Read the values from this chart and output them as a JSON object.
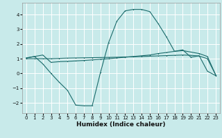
{
  "title": "",
  "xlabel": "Humidex (Indice chaleur)",
  "bg_color": "#c8eaea",
  "grid_color": "#ffffff",
  "line_color": "#1a6b6b",
  "xlim": [
    -0.5,
    23.5
  ],
  "ylim": [
    -2.7,
    4.8
  ],
  "yticks": [
    -2,
    -1,
    0,
    1,
    2,
    3,
    4
  ],
  "xticks": [
    0,
    1,
    2,
    3,
    4,
    5,
    6,
    7,
    8,
    9,
    10,
    11,
    12,
    13,
    14,
    15,
    16,
    17,
    18,
    19,
    20,
    21,
    22,
    23
  ],
  "series1_x": [
    0,
    1,
    2,
    3,
    4,
    5,
    6,
    7,
    8,
    9,
    10,
    11,
    12,
    13,
    14,
    15,
    16,
    17,
    18,
    19,
    20,
    21,
    22,
    23
  ],
  "series1_y": [
    1.05,
    1.15,
    1.25,
    0.75,
    0.8,
    0.82,
    0.85,
    0.88,
    0.92,
    0.96,
    1.0,
    1.05,
    1.1,
    1.15,
    1.2,
    1.25,
    1.35,
    1.42,
    1.5,
    1.55,
    1.45,
    1.35,
    1.15,
    -0.1
  ],
  "series2_x": [
    0,
    1,
    2,
    3,
    4,
    5,
    6,
    7,
    8,
    9,
    10,
    11,
    12,
    13,
    14,
    15,
    16,
    17,
    18,
    19,
    20,
    21,
    22,
    23
  ],
  "series2_y": [
    1.0,
    1.0,
    1.0,
    1.0,
    1.02,
    1.04,
    1.05,
    1.06,
    1.07,
    1.08,
    1.09,
    1.1,
    1.12,
    1.13,
    1.15,
    1.17,
    1.19,
    1.21,
    1.23,
    1.25,
    1.23,
    1.18,
    1.0,
    -0.1
  ],
  "series3_x": [
    0,
    1,
    2,
    3,
    4,
    5,
    6,
    7,
    8,
    9,
    10,
    11,
    12,
    13,
    14,
    15,
    16,
    17,
    18,
    19,
    20,
    21,
    22,
    23
  ],
  "series3_y": [
    1.05,
    1.15,
    0.65,
    0.0,
    -0.6,
    -1.15,
    -2.15,
    -2.2,
    -2.2,
    0.05,
    2.1,
    3.55,
    4.25,
    4.35,
    4.35,
    4.2,
    3.4,
    2.5,
    1.5,
    1.6,
    1.1,
    1.2,
    0.15,
    -0.15
  ],
  "xlabel_fontsize": 6.5,
  "tick_fontsize": 5.0
}
